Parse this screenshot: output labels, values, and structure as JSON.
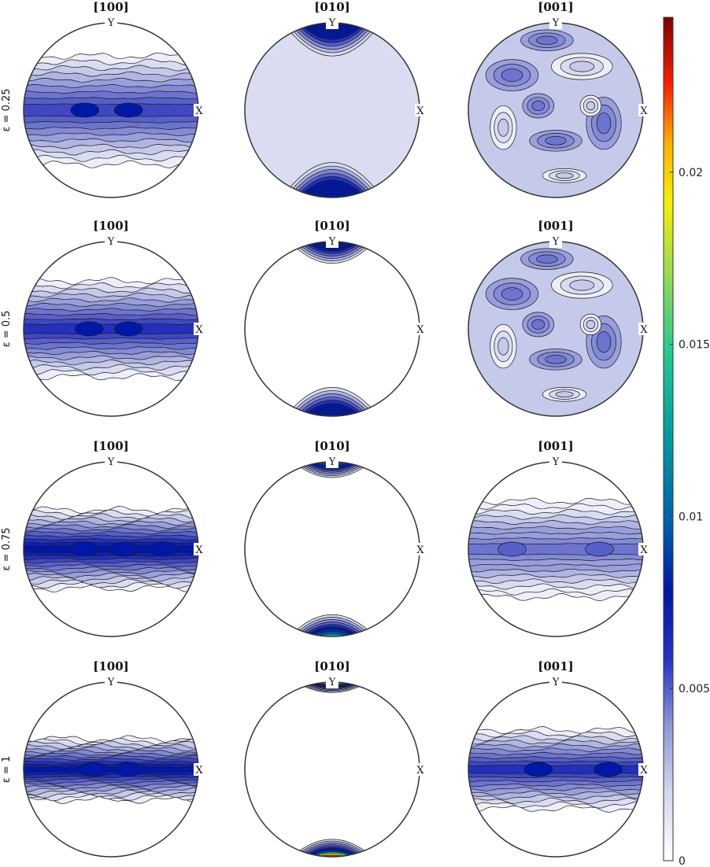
{
  "columns": [
    {
      "title": "[100]",
      "pole": "100"
    },
    {
      "title": "[010]",
      "pole": "010"
    },
    {
      "title": "[001]",
      "pole": "001"
    }
  ],
  "rows": [
    {
      "label": "ε = 0.25"
    },
    {
      "label": "ε = 0.5"
    },
    {
      "label": "ε = 0.75"
    },
    {
      "label": "ε = 1"
    }
  ],
  "axis_labels": {
    "x": "X",
    "y": "Y"
  },
  "colorbar": {
    "ticks": [
      "0",
      "0.005",
      "0.01",
      "0.015",
      "0.02"
    ],
    "range": [
      0,
      0.0245
    ],
    "colormap": "white-blue-jet"
  },
  "colors": {
    "outline": "#333333",
    "contour": "#1a1a1a"
  }
}
